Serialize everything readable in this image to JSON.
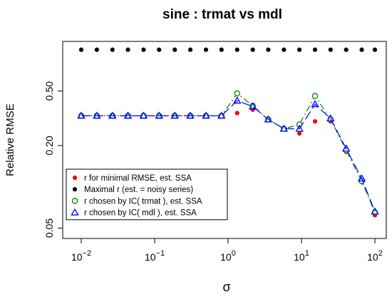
{
  "chart_data": {
    "type": "line",
    "title": "sine :  trmat vs mdl",
    "xlabel": "σ",
    "ylabel": "Relative RMSE",
    "x_scale": "log",
    "y_scale": "log",
    "xlim": [
      0.01,
      100
    ],
    "ylim": [
      0.042,
      1.15
    ],
    "x_ticks": [
      {
        "value": 0.01,
        "base": "10",
        "exp": "−2"
      },
      {
        "value": 0.1,
        "base": "10",
        "exp": "−1"
      },
      {
        "value": 1,
        "base": "10",
        "exp": "0"
      },
      {
        "value": 10,
        "base": "10",
        "exp": "1"
      },
      {
        "value": 100,
        "base": "10",
        "exp": "2"
      }
    ],
    "y_ticks": [
      {
        "value": 0.05,
        "label": "0.05"
      },
      {
        "value": 0.2,
        "label": "0.20"
      },
      {
        "value": 0.5,
        "label": "0.50"
      }
    ],
    "x": [
      0.01,
      0.0163,
      0.0266,
      0.0433,
      0.0706,
      0.115,
      0.188,
      0.306,
      0.5,
      0.814,
      1.33,
      2.17,
      3.53,
      5.76,
      9.37,
      15.3,
      24.9,
      40.6,
      66.2,
      100
    ],
    "series": [
      {
        "name": "r for minimal RMSE, est. SSA",
        "color": "#ff0000",
        "marker": "dot",
        "line": "none",
        "values": [
          0.33,
          0.33,
          0.33,
          0.33,
          0.33,
          0.33,
          0.33,
          0.33,
          0.33,
          0.33,
          0.345,
          0.365,
          0.31,
          0.265,
          0.245,
          0.3,
          0.3,
          0.18,
          0.108,
          0.062
        ]
      },
      {
        "name": "Maximal r (est. = noisy series)",
        "color": "#000000",
        "marker": "dot",
        "line": "none",
        "values": [
          1.0,
          1.0,
          1.0,
          1.0,
          1.0,
          1.0,
          1.0,
          1.0,
          1.0,
          1.0,
          1.0,
          1.0,
          1.0,
          1.0,
          1.0,
          1.0,
          1.0,
          1.0,
          1.0,
          1.0
        ]
      },
      {
        "name": "r chosen by IC( trmat ), est. SSA",
        "color": "#008000",
        "marker": "circle",
        "line": "dashdot",
        "values": [
          0.33,
          0.33,
          0.33,
          0.33,
          0.33,
          0.33,
          0.33,
          0.33,
          0.33,
          0.33,
          0.48,
          0.39,
          0.31,
          0.265,
          0.285,
          0.46,
          0.31,
          0.185,
          0.11,
          0.065
        ]
      },
      {
        "name": "r chosen by IC( mdl ), est. SSA",
        "color": "#0000ff",
        "marker": "triangle",
        "line": "longdash",
        "values": [
          0.33,
          0.33,
          0.33,
          0.33,
          0.33,
          0.33,
          0.33,
          0.33,
          0.33,
          0.33,
          0.425,
          0.385,
          0.31,
          0.265,
          0.265,
          0.4,
          0.315,
          0.19,
          0.115,
          0.066
        ]
      }
    ],
    "grid": false,
    "legend_position": "bottom-left"
  }
}
